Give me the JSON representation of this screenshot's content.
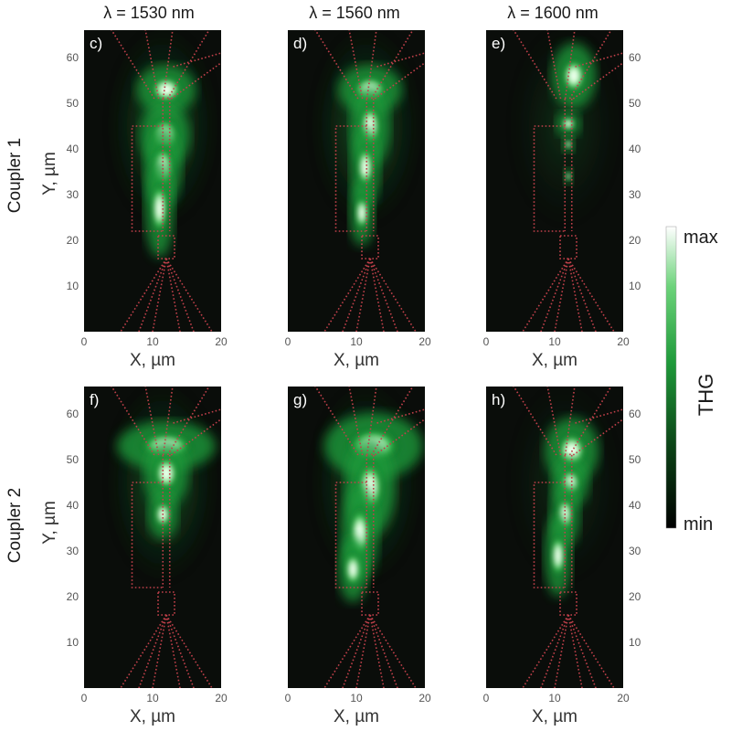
{
  "columns": [
    {
      "title": "λ = 1530 nm"
    },
    {
      "title": "λ = 1560 nm"
    },
    {
      "title": "λ = 1600 nm"
    }
  ],
  "rows": [
    {
      "title": "Coupler 1"
    },
    {
      "title": "Coupler 2"
    }
  ],
  "panels": [
    {
      "label": "c)"
    },
    {
      "label": "d)"
    },
    {
      "label": "e)"
    },
    {
      "label": "f)"
    },
    {
      "label": "g)"
    },
    {
      "label": "h)"
    }
  ],
  "axes": {
    "x_title": "X, µm",
    "y_title": "Y, µm",
    "x_ticks": [
      "0",
      "10",
      "20"
    ],
    "y_ticks": [
      "10",
      "20",
      "30",
      "40",
      "50",
      "60"
    ]
  },
  "colorbar": {
    "max_label": "max",
    "min_label": "min",
    "title": "THG",
    "colors": [
      "#000000",
      "#0a3d14",
      "#1f9a3a",
      "#6cd37a",
      "#ffffff"
    ]
  }
}
